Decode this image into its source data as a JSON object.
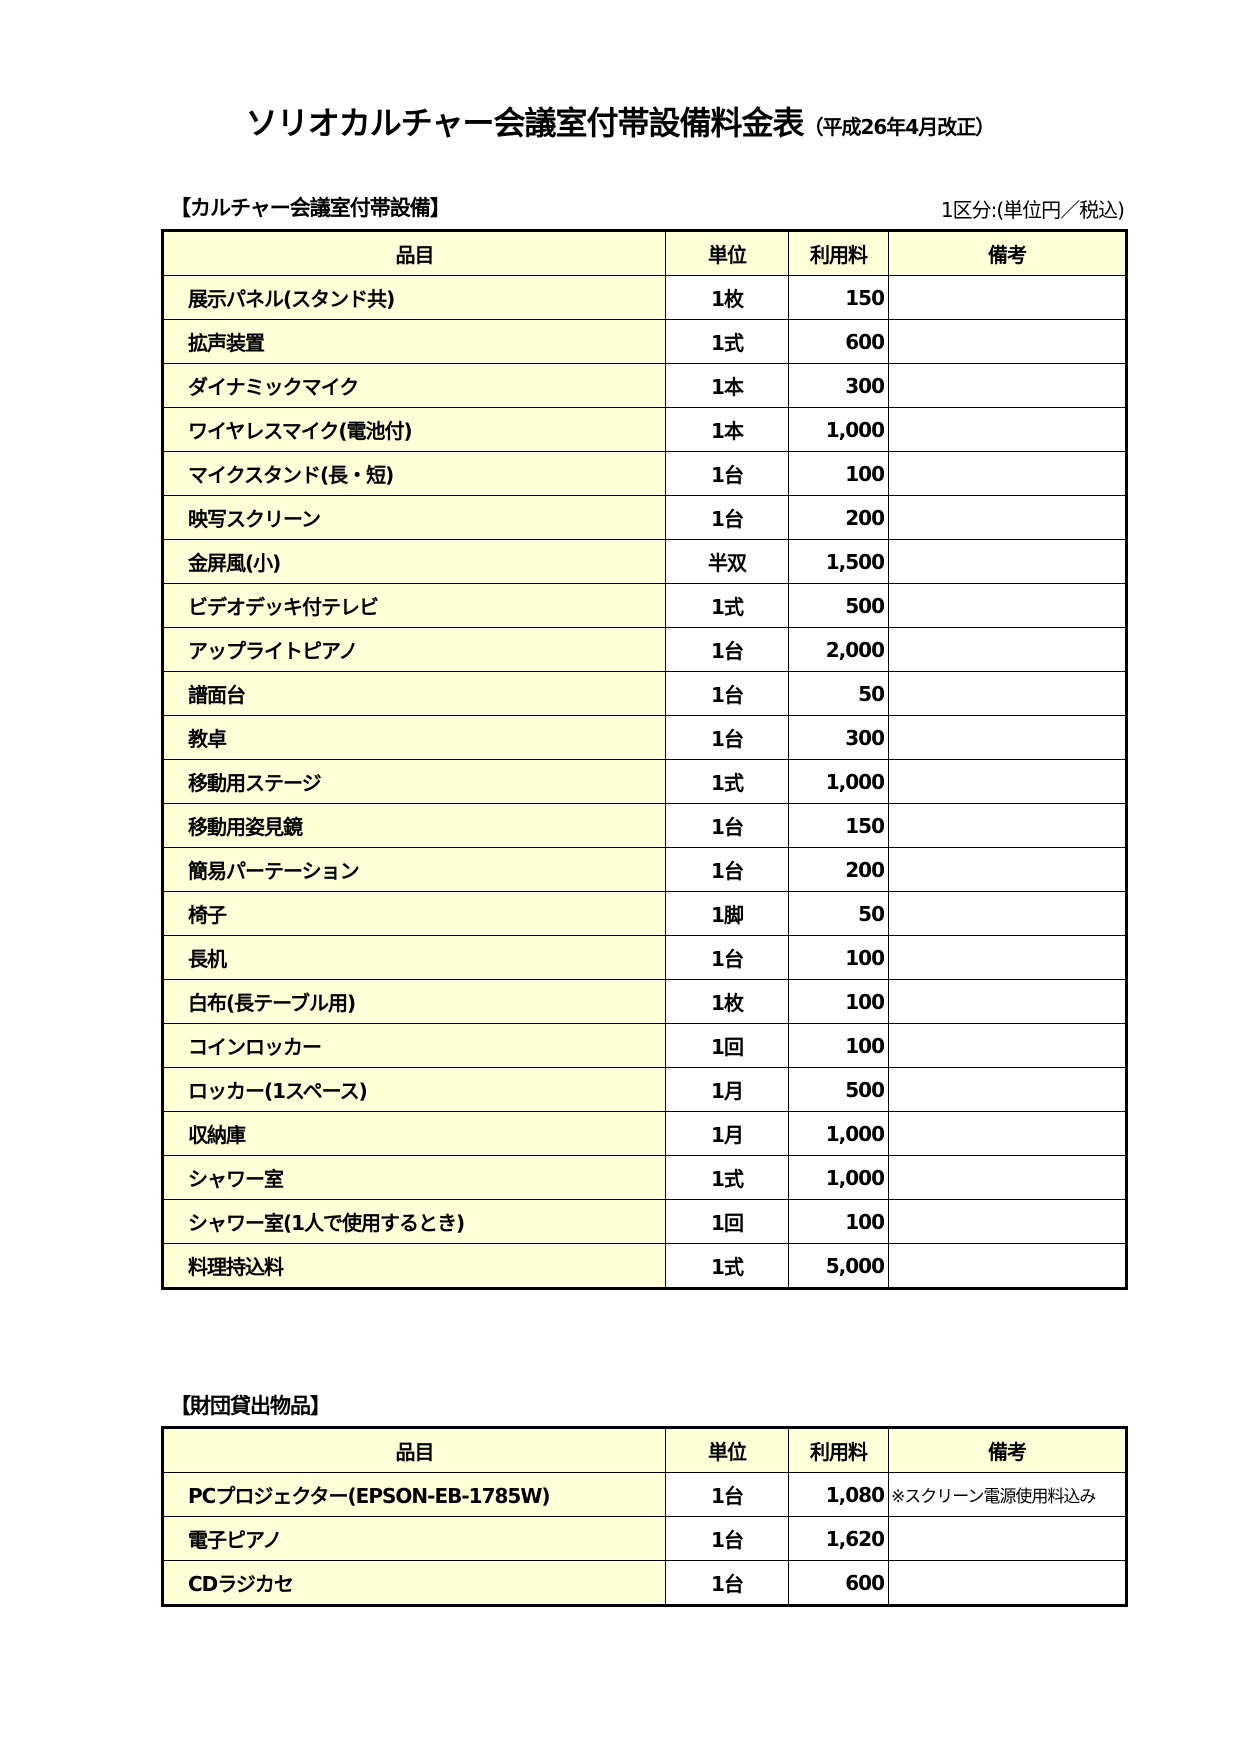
{
  "title": {
    "main": "ソリオカルチャー会議室付帯設備料金表",
    "sub": "（平成26年4月改正）"
  },
  "section1": {
    "heading": "【カルチャー会議室付帯設備】",
    "unit_note": "1区分:(単位円／税込)",
    "columns": [
      "品目",
      "単位",
      "利用料",
      "備考"
    ],
    "rows": [
      {
        "item": "展示パネル(スタンド共)",
        "unit": "1枚",
        "fee": "150",
        "note": ""
      },
      {
        "item": "拡声装置",
        "unit": "1式",
        "fee": "600",
        "note": ""
      },
      {
        "item": "ダイナミックマイク",
        "unit": "1本",
        "fee": "300",
        "note": ""
      },
      {
        "item": "ワイヤレスマイク(電池付)",
        "unit": "1本",
        "fee": "1,000",
        "note": ""
      },
      {
        "item": "マイクスタンド(長・短)",
        "unit": "1台",
        "fee": "100",
        "note": ""
      },
      {
        "item": "映写スクリーン",
        "unit": "1台",
        "fee": "200",
        "note": ""
      },
      {
        "item": "金屏風(小)",
        "unit": "半双",
        "fee": "1,500",
        "note": ""
      },
      {
        "item": "ビデオデッキ付テレビ",
        "unit": "1式",
        "fee": "500",
        "note": ""
      },
      {
        "item": "アップライトピアノ",
        "unit": "1台",
        "fee": "2,000",
        "note": ""
      },
      {
        "item": "譜面台",
        "unit": "1台",
        "fee": "50",
        "note": ""
      },
      {
        "item": "教卓",
        "unit": "1台",
        "fee": "300",
        "note": ""
      },
      {
        "item": "移動用ステージ",
        "unit": "1式",
        "fee": "1,000",
        "note": ""
      },
      {
        "item": "移動用姿見鏡",
        "unit": "1台",
        "fee": "150",
        "note": ""
      },
      {
        "item": "簡易パーテーション",
        "unit": "1台",
        "fee": "200",
        "note": ""
      },
      {
        "item": "椅子",
        "unit": "1脚",
        "fee": "50",
        "note": ""
      },
      {
        "item": "長机",
        "unit": "1台",
        "fee": "100",
        "note": ""
      },
      {
        "item": "白布(長テーブル用)",
        "unit": "1枚",
        "fee": "100",
        "note": ""
      },
      {
        "item": "コインロッカー",
        "unit": "1回",
        "fee": "100",
        "note": ""
      },
      {
        "item": "ロッカー(1スペース)",
        "unit": "1月",
        "fee": "500",
        "note": ""
      },
      {
        "item": "収納庫",
        "unit": "1月",
        "fee": "1,000",
        "note": ""
      },
      {
        "item": "シャワー室",
        "unit": "1式",
        "fee": "1,000",
        "note": ""
      },
      {
        "item": "シャワー室(1人で使用するとき)",
        "unit": "1回",
        "fee": "100",
        "note": ""
      },
      {
        "item": "料理持込料",
        "unit": "1式",
        "fee": "5,000",
        "note": ""
      }
    ]
  },
  "section2": {
    "heading": "【財団貸出物品】",
    "columns": [
      "品目",
      "単位",
      "利用料",
      "備考"
    ],
    "rows": [
      {
        "item": "PCプロジェクター(EPSON-EB-1785W)",
        "unit": "1台",
        "fee": "1,080",
        "note": "※スクリーン電源使用料込み"
      },
      {
        "item": "電子ピアノ",
        "unit": "1台",
        "fee": "1,620",
        "note": ""
      },
      {
        "item": "CDラジカセ",
        "unit": "1台",
        "fee": "600",
        "note": ""
      }
    ]
  },
  "colors": {
    "header_fill": "#ffffd8",
    "border": "#000000"
  }
}
